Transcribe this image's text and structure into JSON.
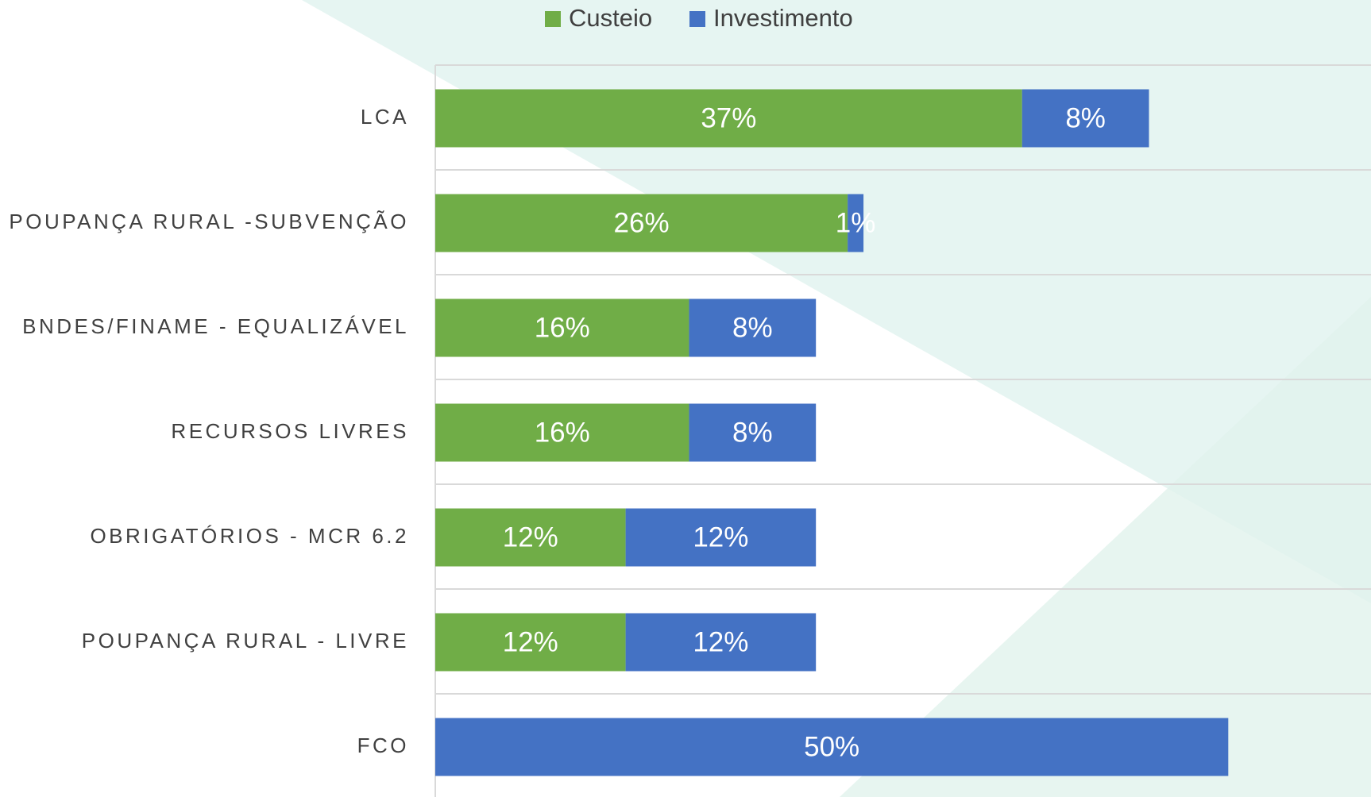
{
  "chart_data": {
    "type": "stacked-barh",
    "categories": [
      "LCA",
      "POUPANÇA RURAL -SUBVENÇÃO",
      "BNDES/FINAME - EQUALIZÁVEL",
      "RECURSOS LIVRES",
      "OBRIGATÓRIOS - MCR 6.2",
      "POUPANÇA RURAL - LIVRE",
      "FCO"
    ],
    "series": [
      {
        "name": "Custeio",
        "color": "#70ad47",
        "values": [
          37,
          26,
          16,
          16,
          12,
          12,
          null
        ],
        "value_labels": [
          "37%",
          "26%",
          "16%",
          "16%",
          "12%",
          "12%",
          null
        ]
      },
      {
        "name": "Investimento",
        "color": "#4472c4",
        "values": [
          8,
          1,
          8,
          8,
          12,
          12,
          50
        ],
        "value_labels": [
          "8%",
          "1%",
          "8%",
          "8%",
          "12%",
          "12%",
          "50%"
        ]
      }
    ],
    "xlim": [
      0,
      59
    ],
    "legend": "top"
  }
}
